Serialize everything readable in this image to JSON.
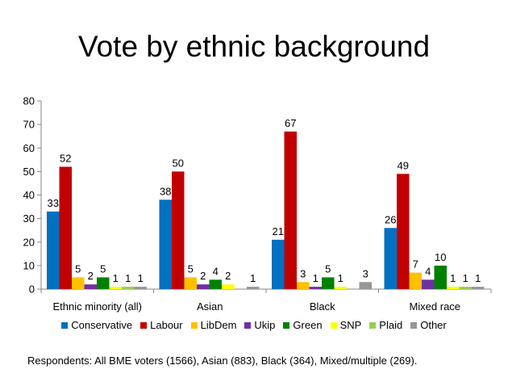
{
  "title": "Vote by ethnic background",
  "footnote": "Respondents: All BME voters (1566), Asian (883), Black (364), Mixed/multiple (269).",
  "chart_data": {
    "type": "bar",
    "categories": [
      "Ethnic minority (all)",
      "Asian",
      "Black",
      "Mixed race"
    ],
    "series": [
      {
        "name": "Conservative",
        "color": "#0070C0",
        "values": [
          33,
          38,
          21,
          26
        ]
      },
      {
        "name": "Labour",
        "color": "#C00000",
        "values": [
          52,
          50,
          67,
          49
        ]
      },
      {
        "name": "LibDem",
        "color": "#FFC000",
        "values": [
          5,
          5,
          3,
          7
        ]
      },
      {
        "name": "Ukip",
        "color": "#7030A0",
        "values": [
          2,
          2,
          1,
          4
        ]
      },
      {
        "name": "Green",
        "color": "#008000",
        "values": [
          5,
          4,
          5,
          10
        ]
      },
      {
        "name": "SNP",
        "color": "#FFFF00",
        "values": [
          1,
          2,
          1,
          1
        ]
      },
      {
        "name": "Plaid",
        "color": "#92D050",
        "values": [
          1,
          0,
          0,
          1
        ]
      },
      {
        "name": "Other",
        "color": "#969696",
        "values": [
          1,
          1,
          3,
          1
        ]
      }
    ],
    "data_labels": [
      [
        "33",
        "52",
        "5",
        "2",
        "5",
        "1",
        "1",
        "1"
      ],
      [
        "38",
        "50",
        "5",
        "2",
        "4",
        "2",
        "",
        "1"
      ],
      [
        "21",
        "67",
        "3",
        "1",
        "5",
        "1",
        "",
        "3"
      ],
      [
        "26",
        "49",
        "7",
        "4",
        "10",
        "1",
        "1",
        "1"
      ]
    ],
    "yticks": [
      "0",
      "10",
      "20",
      "30",
      "40",
      "50",
      "60",
      "70",
      "80"
    ],
    "ylim": [
      0,
      80
    ],
    "legend_position": "bottom",
    "grid": false
  }
}
